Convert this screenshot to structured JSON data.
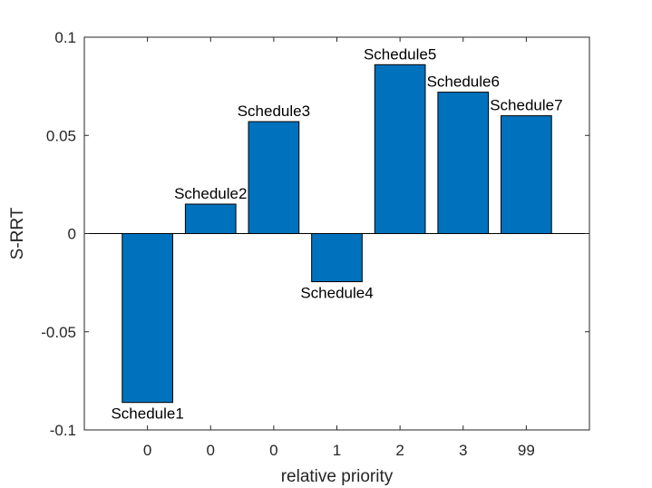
{
  "chart_data": {
    "type": "bar",
    "categories": [
      "0",
      "0",
      "0",
      "1",
      "2",
      "3",
      "99"
    ],
    "values": [
      -0.086,
      0.015,
      0.057,
      -0.0245,
      0.086,
      0.072,
      0.06
    ],
    "bar_labels": [
      "Schedule1",
      "Schedule2",
      "Schedule3",
      "Schedule4",
      "Schedule5",
      "Schedule6",
      "Schedule7"
    ],
    "title": "",
    "xlabel": "relative priority",
    "ylabel": "S-RRT",
    "ylim": [
      -0.1,
      0.1
    ],
    "yticks": [
      -0.1,
      -0.05,
      0,
      0.05,
      0.1
    ],
    "ytick_labels": [
      "-0.1",
      "-0.05",
      "0",
      "0.05",
      "0.1"
    ],
    "bar_color": "#0072BD",
    "bar_edge_color": "#000000",
    "grid": false,
    "baseline": 0
  }
}
